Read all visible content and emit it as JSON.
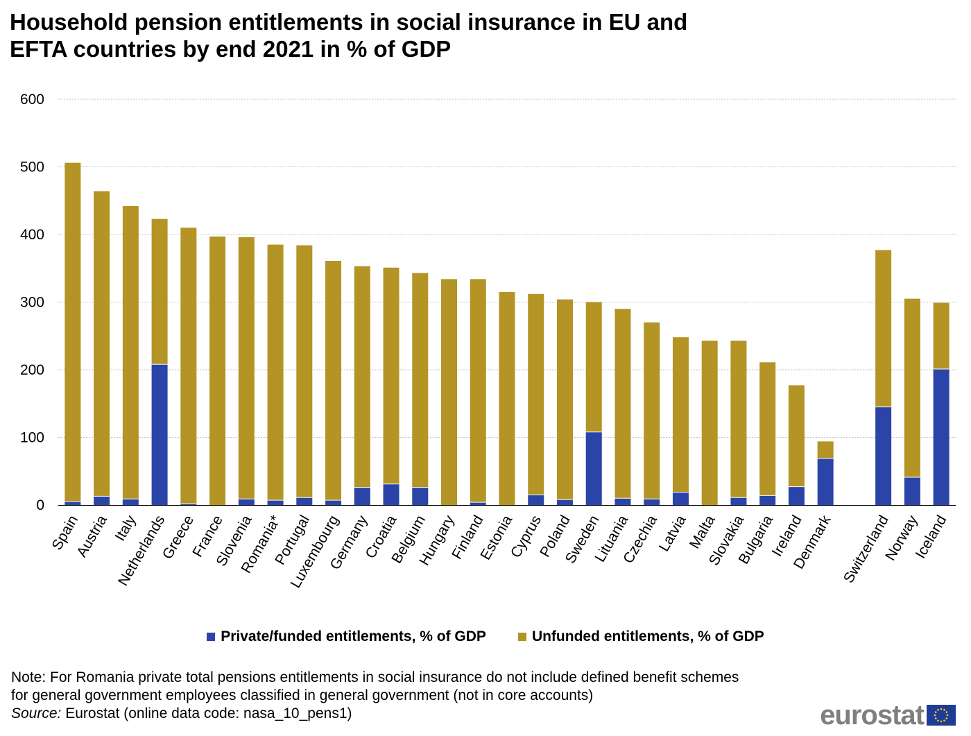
{
  "title": {
    "line1": "Household pension entitlements in social insurance in EU and",
    "line2": "EFTA countries by end 2021 in % of GDP"
  },
  "chart_data": {
    "type": "bar",
    "stacked": true,
    "categories": [
      "Spain",
      "Austria",
      "Italy",
      "Netherlands",
      "Greece",
      "France",
      "Slovenia",
      "Romania*",
      "Portugal",
      "Luxembourg",
      "Germany",
      "Croatia",
      "Belgium",
      "Hungary",
      "Finland",
      "Estonia",
      "Cyprus",
      "Poland",
      "Sweden",
      "Lituania",
      "Czechia",
      "Latvia",
      "Malta",
      "Slovakia",
      "Bulgaria",
      "Ireland",
      "Denmark",
      "",
      "Switzerland",
      "Norway",
      "Iceland"
    ],
    "series": [
      {
        "name": "Private/funded entitlements, % of GDP",
        "color": "#2a44a8",
        "values": [
          5,
          13,
          9,
          208,
          2,
          0,
          9,
          7,
          11,
          7,
          26,
          31,
          26,
          0,
          4,
          0,
          15,
          8,
          108,
          10,
          9,
          19,
          0,
          11,
          14,
          27,
          69,
          null,
          145,
          41,
          201
        ]
      },
      {
        "name": "Unfunded entitlements, % of GDP",
        "color": "#b39424",
        "values": [
          501,
          451,
          433,
          215,
          408,
          397,
          387,
          378,
          373,
          354,
          327,
          320,
          317,
          334,
          330,
          315,
          297,
          296,
          192,
          280,
          261,
          229,
          243,
          232,
          197,
          150,
          25,
          null,
          232,
          264,
          98
        ]
      }
    ],
    "title": "Household pension entitlements in social insurance in EU and EFTA countries by end 2021 in % of GDP",
    "xlabel": "",
    "ylabel": "",
    "ylim": [
      0,
      600
    ],
    "yticks": [
      0,
      100,
      200,
      300,
      400,
      500,
      600
    ],
    "grid": true,
    "legend_position": "bottom"
  },
  "legend": {
    "private_label": "Private/funded entitlements, % of GDP",
    "unfunded_label": "Unfunded entitlements, % of GDP"
  },
  "note": {
    "line1": "Note: For Romania private total pensions entitlements in social insurance do not include defined benefit schemes",
    "line2": "for general government employees classified in general government (not in core accounts)"
  },
  "source": {
    "label": "Source:",
    "text": " Eurostat (online data code: nasa_10_pens1)"
  },
  "logo": {
    "text": "eurostat"
  },
  "colors": {
    "private": "#2a44a8",
    "unfunded": "#b39424",
    "grid": "#bfbfbf",
    "logo_text": "#7f7f7f",
    "flag": "#1f3c99",
    "stars": "#ffd400"
  }
}
